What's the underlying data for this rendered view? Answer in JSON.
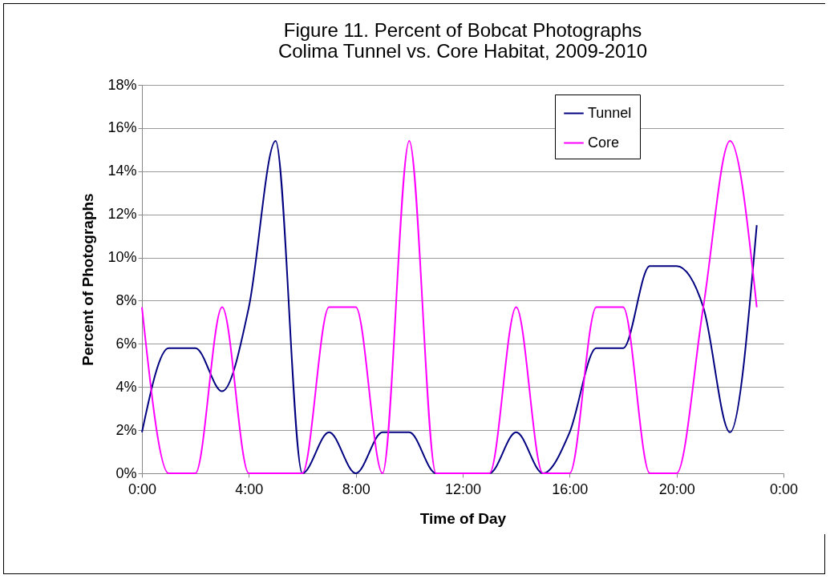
{
  "chart_data": {
    "type": "line",
    "title": "Figure 11. Percent of Bobcat Photographs\nColima Tunnel vs. Core Habitat, 2009-2010",
    "xlabel": "Time of Day",
    "ylabel": "Percent of Photographs",
    "x": [
      0,
      1,
      2,
      3,
      4,
      5,
      6,
      7,
      8,
      9,
      10,
      11,
      12,
      13,
      14,
      15,
      16,
      17,
      18,
      19,
      20,
      21,
      22,
      23
    ],
    "series": [
      {
        "name": "Tunnel",
        "color": "#000080",
        "values": [
          1.9,
          5.8,
          5.8,
          3.8,
          7.7,
          15.4,
          0,
          1.9,
          0,
          1.9,
          1.9,
          0,
          0,
          0,
          1.9,
          0,
          1.9,
          5.8,
          5.8,
          9.6,
          9.6,
          7.7,
          1.9,
          11.5
        ]
      },
      {
        "name": "Core",
        "color": "#ff00ff",
        "values": [
          7.7,
          0,
          0,
          7.7,
          0,
          0,
          0,
          7.7,
          7.7,
          0,
          15.4,
          0,
          0,
          0,
          7.7,
          0,
          0,
          7.7,
          7.7,
          0,
          0,
          7.7,
          15.4,
          7.7
        ]
      }
    ],
    "xlim": [
      0,
      24
    ],
    "xticks": [
      {
        "value": 0,
        "label": "0:00"
      },
      {
        "value": 4,
        "label": "4:00"
      },
      {
        "value": 8,
        "label": "8:00"
      },
      {
        "value": 12,
        "label": "12:00"
      },
      {
        "value": 16,
        "label": "16:00"
      },
      {
        "value": 20,
        "label": "20:00"
      },
      {
        "value": 24,
        "label": "0:00"
      }
    ],
    "ylim": [
      0,
      18
    ],
    "yticks": [
      {
        "value": 0,
        "label": "0%"
      },
      {
        "value": 2,
        "label": "2%"
      },
      {
        "value": 4,
        "label": "4%"
      },
      {
        "value": 6,
        "label": "6%"
      },
      {
        "value": 8,
        "label": "8%"
      },
      {
        "value": 10,
        "label": "10%"
      },
      {
        "value": 12,
        "label": "12%"
      },
      {
        "value": 14,
        "label": "14%"
      },
      {
        "value": 16,
        "label": "16%"
      },
      {
        "value": 18,
        "label": "18%"
      }
    ],
    "grid": "y",
    "legend": "top right",
    "marker": "none",
    "line_style": "solid"
  }
}
